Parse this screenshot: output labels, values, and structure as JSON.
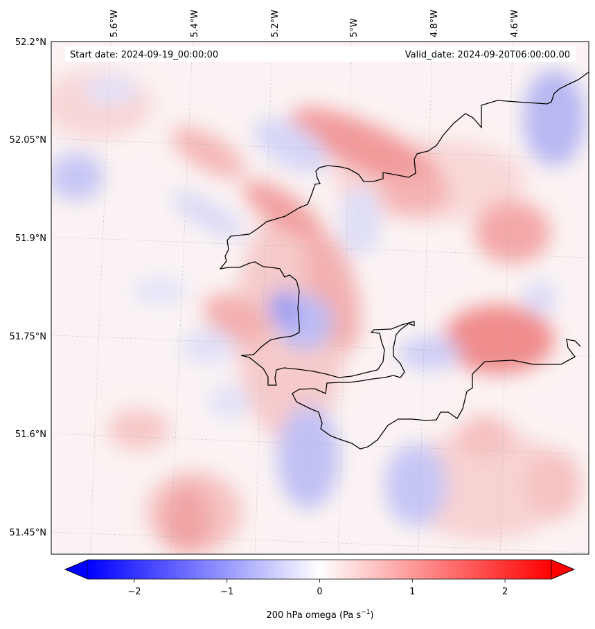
{
  "header": {
    "start_date": "Start date: 2024-09-19_00:00:00",
    "valid_date": "Valid_date: 2024-09-20T06:00:00.00"
  },
  "map": {
    "lon_labels": [
      "5.6°W",
      "5.4°W",
      "5.2°W",
      "5°W",
      "4.8°W",
      "4.6°W"
    ],
    "lat_labels": [
      "52.2°N",
      "52.05°N",
      "51.9°N",
      "51.75°N",
      "51.6°N",
      "51.45°N"
    ],
    "field": "omega at 200 hPa",
    "color_scheme": "diverging blue-white-red",
    "gridlines": true
  },
  "colorbar": {
    "label": "200 hPa omega (Pa s",
    "label_sup": "−1",
    "label_close": ")",
    "ticks": [
      "−2",
      "−1",
      "0",
      "1",
      "2"
    ],
    "tick_values": [
      -2,
      -1,
      0,
      1,
      2
    ],
    "min": -2.5,
    "max": 2.5,
    "extend": "both",
    "colors": {
      "low": "#0000ff",
      "mid": "#ffffff",
      "high": "#ff0000"
    }
  }
}
